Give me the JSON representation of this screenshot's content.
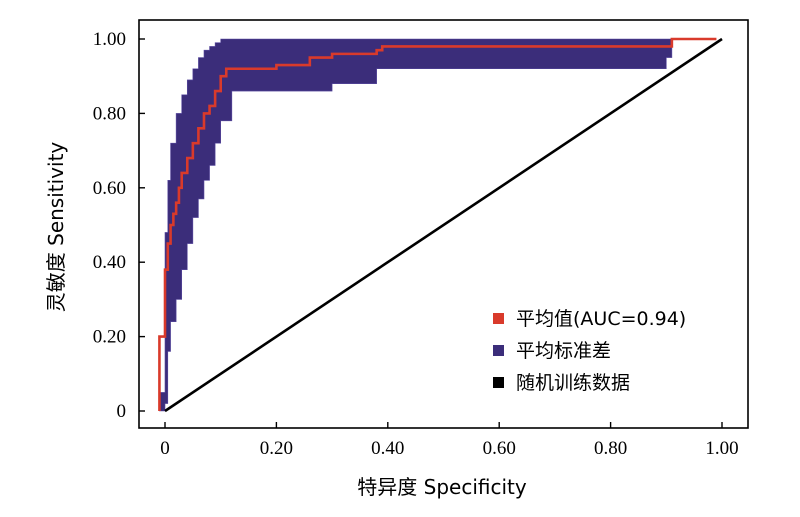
{
  "chart_data": {
    "type": "line",
    "xlabel": "特异度 Specificity",
    "ylabel": "灵敏度 Sensitivity",
    "xlim": [
      0,
      1
    ],
    "ylim": [
      0,
      1
    ],
    "x_ticks": [
      "0",
      "0.20",
      "0.40",
      "0.60",
      "0.80",
      "1.00"
    ],
    "y_ticks": [
      "0",
      "0.20",
      "0.40",
      "0.60",
      "0.80",
      "1.00"
    ],
    "legend_position": "bottom-right",
    "series": [
      {
        "name": "平均值(AUC=0.94)",
        "color": "#d93a2b",
        "x": [
          -0.01,
          -0.01,
          0.0,
          0.0,
          0.005,
          0.01,
          0.015,
          0.02,
          0.025,
          0.03,
          0.04,
          0.05,
          0.055,
          0.06,
          0.07,
          0.08,
          0.09,
          0.1,
          0.11,
          0.12,
          0.16,
          0.2,
          0.26,
          0.3,
          0.38,
          0.39,
          0.5,
          0.6,
          0.7,
          0.8,
          0.88,
          0.9,
          0.91,
          0.99
        ],
        "y": [
          0.0,
          0.2,
          0.3,
          0.38,
          0.45,
          0.5,
          0.53,
          0.56,
          0.6,
          0.64,
          0.68,
          0.72,
          0.72,
          0.76,
          0.8,
          0.82,
          0.86,
          0.9,
          0.92,
          0.92,
          0.92,
          0.93,
          0.95,
          0.96,
          0.97,
          0.98,
          0.98,
          0.98,
          0.98,
          0.98,
          0.98,
          0.98,
          1.0,
          1.0
        ]
      },
      {
        "name": "平均标准差",
        "color": "#3b2d7a",
        "band_x": [
          -0.01,
          0.0,
          0.005,
          0.01,
          0.02,
          0.03,
          0.04,
          0.05,
          0.06,
          0.07,
          0.08,
          0.09,
          0.1,
          0.12,
          0.15,
          0.2,
          0.3,
          0.38,
          0.4,
          0.6,
          0.8,
          0.88,
          0.9,
          0.91
        ],
        "band_upper": [
          0.05,
          0.48,
          0.62,
          0.72,
          0.8,
          0.85,
          0.89,
          0.92,
          0.95,
          0.97,
          0.98,
          0.99,
          1.0,
          1.0,
          1.0,
          1.0,
          1.0,
          1.0,
          1.0,
          1.0,
          1.0,
          1.0,
          1.0,
          1.0
        ],
        "band_lower": [
          0.0,
          0.02,
          0.16,
          0.24,
          0.3,
          0.38,
          0.45,
          0.52,
          0.57,
          0.62,
          0.66,
          0.72,
          0.78,
          0.86,
          0.86,
          0.86,
          0.88,
          0.92,
          0.92,
          0.92,
          0.92,
          0.92,
          0.95,
          1.0
        ]
      },
      {
        "name": "随机训练数据",
        "color": "#000000",
        "x": [
          0.0,
          1.0
        ],
        "y": [
          0.0,
          1.0
        ]
      }
    ]
  }
}
